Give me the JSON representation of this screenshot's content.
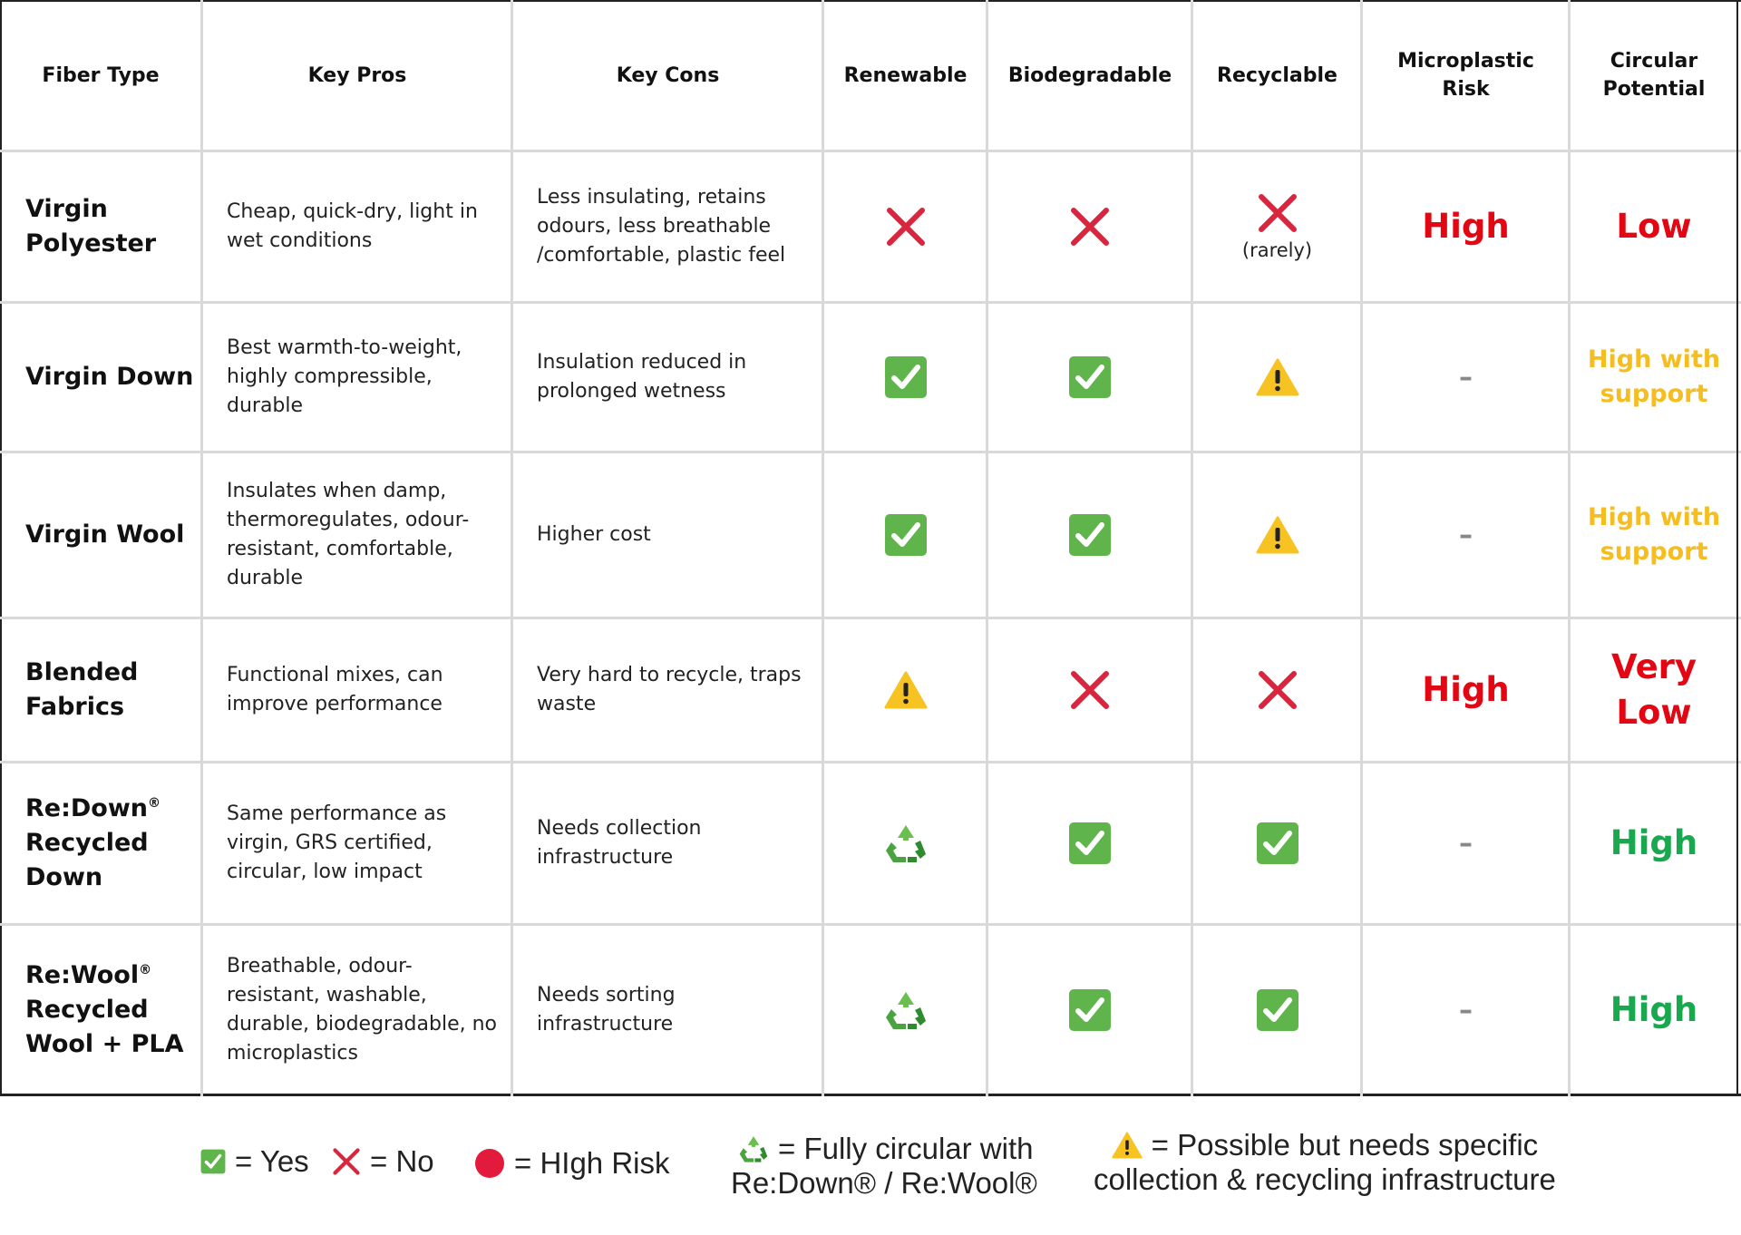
{
  "colors": {
    "red": "#e30613",
    "yellow": "#f5bd1f",
    "green": "#18a84e",
    "check": "#5fb54b",
    "cross": "#d7263d",
    "warn": "#f6c322"
  },
  "headers": [
    "Fiber Type",
    "Key Pros",
    "Key Cons",
    "Renewable",
    "Biodegradable",
    "Recyclable",
    "Microplastic Risk",
    "Circular Potential"
  ],
  "rows": [
    {
      "fiber": "Virgin Polyester",
      "pros": "Cheap, quick-dry, light in wet conditions",
      "cons": "Less insulating, retains odours, less breathable /comfortable, plastic feel",
      "renewable": "cross",
      "biodegradable": "cross",
      "recyclable": "cross",
      "recyclable_note": "(rarely)",
      "microplastic": "High",
      "microplastic_color": "red",
      "circular": "Low",
      "circular_color": "red"
    },
    {
      "fiber": "Virgin Down",
      "pros": "Best warmth-to-weight, highly compressible, durable",
      "cons": "Insulation reduced in prolonged wetness",
      "renewable": "check",
      "biodegradable": "check",
      "recyclable": "warning",
      "microplastic": "–",
      "circular": "High with support",
      "circular_color": "yellow"
    },
    {
      "fiber": "Virgin Wool",
      "pros": "Insulates when damp, thermoregulates, odour-resistant, comfortable, durable",
      "cons": "Higher cost",
      "renewable": "check",
      "biodegradable": "check",
      "recyclable": "warning",
      "microplastic": "–",
      "circular": "High with support",
      "circular_color": "yellow"
    },
    {
      "fiber": "Blended Fabrics",
      "pros": "Functional mixes, can improve performance",
      "cons": "Very hard to recycle, traps waste",
      "renewable": "warning",
      "biodegradable": "cross",
      "recyclable": "cross",
      "microplastic": "High",
      "microplastic_color": "red",
      "circular": "Very Low",
      "circular_color": "red"
    },
    {
      "fiber_brand": "Re:Down",
      "fiber_reg": "®",
      "fiber": "Recycled Down",
      "pros": "Same performance as virgin, GRS certified, circular, low impact",
      "cons": "Needs collection infrastructure",
      "renewable": "recycle",
      "biodegradable": "check",
      "recyclable": "check",
      "microplastic": "–",
      "circular": "High",
      "circular_color": "green"
    },
    {
      "fiber_brand": "Re:Wool",
      "fiber_reg": "®",
      "fiber": "Recycled Wool + PLA",
      "pros": "Breathable, odour-resistant, washable, durable, biodegradable, no microplastics",
      "cons": "Needs sorting infrastructure",
      "renewable": "recycle",
      "biodegradable": "check",
      "recyclable": "check",
      "microplastic": "–",
      "circular": "High",
      "circular_color": "green"
    }
  ],
  "legend": {
    "yes": "= Yes",
    "no": "= No",
    "high_risk": "= HIgh Risk",
    "circular_line1": "= Fully circular with",
    "circular_line2": "Re:Down® / Re:Wool®",
    "possible_line1": "= Possible but needs specific",
    "possible_line2": "collection & recycling infrastructure"
  }
}
